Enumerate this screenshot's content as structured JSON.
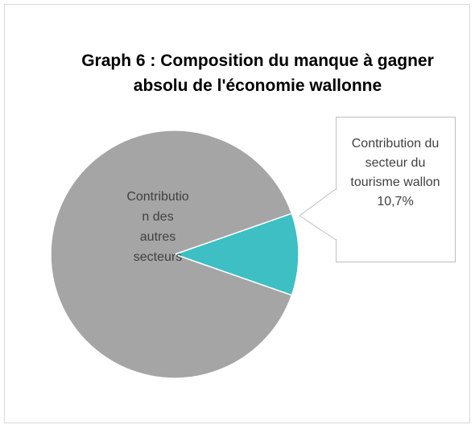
{
  "chart_data": {
    "type": "pie",
    "title": "Graph 6 : Composition du manque à gagner absolu de l'économie wallonne",
    "categories": [
      "Contribution des autres secteurs",
      "Contribution du secteur du tourisme wallon"
    ],
    "values": [
      89.3,
      10.7
    ],
    "value_labels": [
      null,
      "10,7%"
    ],
    "colors": [
      "#a5a5a5",
      "#3dbfc3"
    ]
  }
}
